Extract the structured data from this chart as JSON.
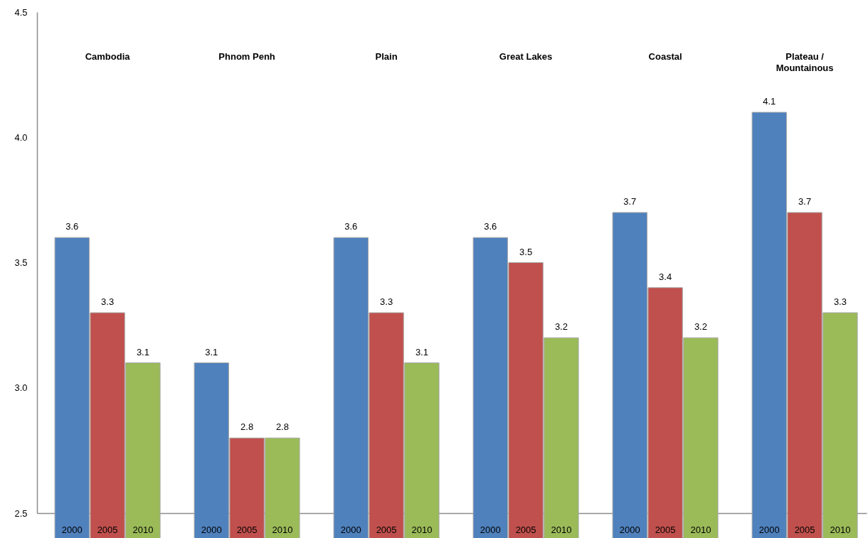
{
  "chart_data": {
    "type": "bar",
    "categories": [
      "Cambodia",
      "Phnom Penh",
      "Plain",
      "Great Lakes",
      "Coastal",
      "Plateau /\nMountainous"
    ],
    "series": [
      {
        "name": "2000",
        "color": "#4f81bd",
        "values": [
          3.6,
          3.1,
          3.6,
          3.6,
          3.7,
          4.1
        ]
      },
      {
        "name": "2005",
        "color": "#c0504d",
        "values": [
          3.3,
          2.8,
          3.3,
          3.5,
          3.4,
          3.7
        ]
      },
      {
        "name": "2010",
        "color": "#9bbb59",
        "values": [
          3.1,
          2.8,
          3.1,
          3.2,
          3.2,
          3.3
        ]
      }
    ],
    "ylim": [
      2.5,
      4.5
    ],
    "yticks": [
      2.5,
      {
        "value": 3,
        "label": "3.0"
      },
      3.5,
      {
        "value": 4,
        "label": "4.0"
      },
      4.5
    ],
    "data_labels": true
  }
}
